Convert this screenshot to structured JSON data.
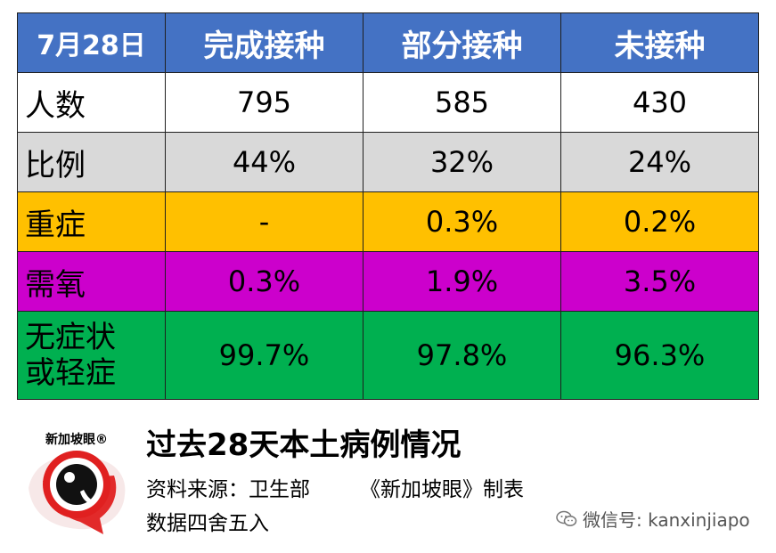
{
  "table": {
    "header": {
      "date": "7月28日",
      "columns": [
        "完成接种",
        "部分接种",
        "未接种"
      ]
    },
    "rows": [
      {
        "label": "人数",
        "values": [
          "795",
          "585",
          "430"
        ],
        "color": "#ffffff"
      },
      {
        "label": "比例",
        "values": [
          "44%",
          "32%",
          "24%"
        ],
        "color": "#d9d9d9"
      },
      {
        "label": "重症",
        "values": [
          "-",
          "0.3%",
          "0.2%"
        ],
        "color": "#ffc000"
      },
      {
        "label": "需氧",
        "values": [
          "0.3%",
          "1.9%",
          "3.5%"
        ],
        "color": "#cc00cc"
      },
      {
        "label_line1": "无症状",
        "label_line2": "或轻症",
        "values": [
          "99.7%",
          "97.8%",
          "96.3%"
        ],
        "color": "#00b050"
      }
    ],
    "header_color": "#4472c4"
  },
  "footer": {
    "logo_text": "新加坡眼®",
    "title": "过去28天本土病例情况",
    "source": "资料来源：卫生部",
    "maker": "《新加坡眼》制表",
    "rounding": "数据四舍五入",
    "wechat": "微信号: kanxinjiapo",
    "logo_icon": "eye-logo-icon",
    "wechat_icon": "wechat-icon"
  }
}
